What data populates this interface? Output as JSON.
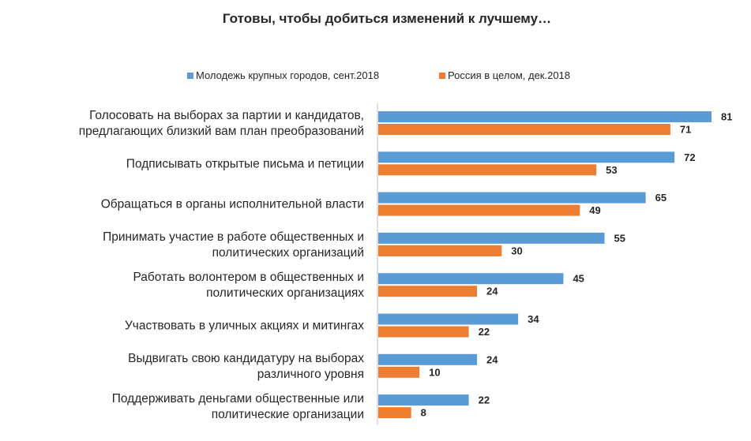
{
  "chart_data": {
    "type": "bar",
    "orientation": "horizontal",
    "title": "Готовы, чтобы добиться изменений к лучшему…",
    "legend_position": "top",
    "grid": false,
    "xlim": [
      0,
      81
    ],
    "categories": [
      [
        "Голосовать  на выборах за партии  и кандидатов,",
        "предлагающих  близкий  вам план  преобразований"
      ],
      [
        "Подписывать  открытые  письма и петиции"
      ],
      [
        "Обращаться  в органы  исполнительной  власти"
      ],
      [
        "Принимать  участие в работе  общественных  и",
        "политических  организаций"
      ],
      [
        "Работать  волонтером  в общественных  и",
        "политических  организациях"
      ],
      [
        "Участвовать  в уличных акциях и митингах"
      ],
      [
        "Выдвигать  свою кандидатуру на выборах",
        "различного  уровня"
      ],
      [
        "Поддерживать  деньгами общественные  или",
        "политические  организации"
      ]
    ],
    "series": [
      {
        "name": "Молодежь крупных городов, сент.2018",
        "color": "#5B9BD5",
        "values": [
          81,
          72,
          65,
          55,
          45,
          34,
          24,
          22
        ]
      },
      {
        "name": "Россия в целом, дек.2018",
        "color": "#ED7D31",
        "values": [
          71,
          53,
          49,
          30,
          24,
          22,
          10,
          8
        ]
      }
    ]
  }
}
